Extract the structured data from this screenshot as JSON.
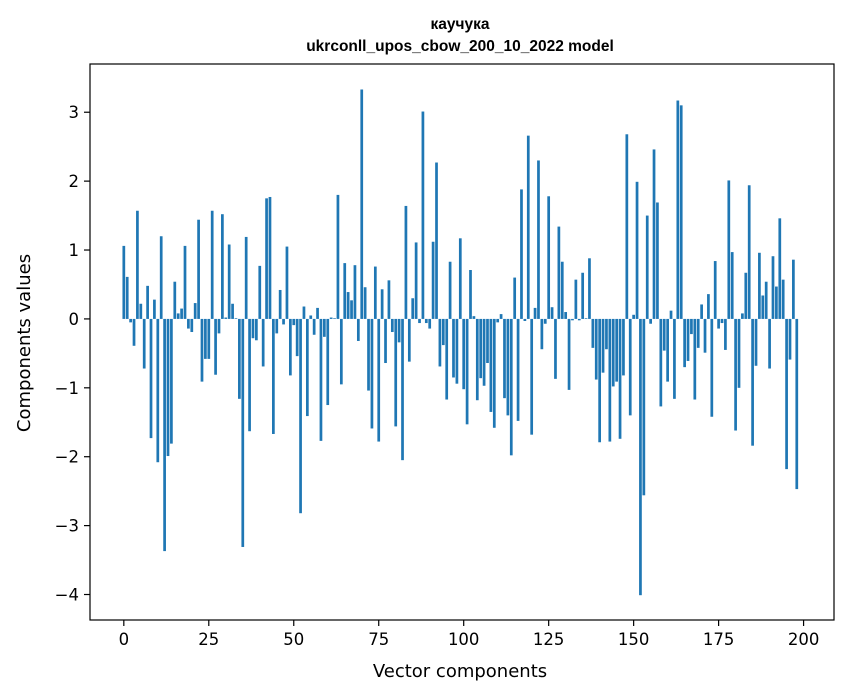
{
  "chart_data": {
    "type": "bar",
    "title_line1": "каучука",
    "title_line2": "ukrconll_upos_cbow_200_10_2022 model",
    "xlabel": "Vector components",
    "ylabel": "Components values",
    "xlim": [
      -9.95,
      208.95
    ],
    "ylim": [
      -4.37,
      3.7
    ],
    "xticks": [
      0,
      25,
      50,
      75,
      100,
      125,
      150,
      175,
      200
    ],
    "yticks": [
      -4,
      -3,
      -2,
      -1,
      0,
      1,
      2,
      3
    ],
    "bar_color": "#1f77b4",
    "grid": false,
    "values": [
      1.06,
      0.61,
      -0.05,
      -0.39,
      1.57,
      0.22,
      -0.72,
      0.48,
      -1.73,
      0.28,
      -2.08,
      1.2,
      -3.37,
      -1.99,
      -1.81,
      0.54,
      0.08,
      0.15,
      1.06,
      -0.14,
      -0.19,
      0.23,
      1.44,
      -0.91,
      -0.58,
      -0.58,
      1.57,
      -0.81,
      -0.21,
      1.52,
      0.02,
      1.08,
      0.22,
      0.01,
      -1.16,
      -3.31,
      1.19,
      -1.63,
      -0.28,
      -0.31,
      0.77,
      -0.69,
      1.75,
      1.77,
      -1.67,
      -0.21,
      0.42,
      -0.08,
      1.05,
      -0.82,
      -0.09,
      -0.54,
      -2.82,
      0.18,
      -1.41,
      0.05,
      -0.23,
      0.16,
      -1.77,
      -0.26,
      -1.25,
      0.02,
      0.01,
      1.8,
      -0.95,
      0.81,
      0.39,
      0.27,
      0.78,
      -0.32,
      3.33,
      0.46,
      -1.04,
      -1.59,
      0.76,
      -1.78,
      0.43,
      -0.64,
      0.56,
      -0.19,
      -1.56,
      -0.34,
      -2.05,
      1.64,
      -0.62,
      0.3,
      1.11,
      -0.06,
      3.01,
      -0.06,
      -0.14,
      1.12,
      2.27,
      -0.69,
      -0.38,
      -1.17,
      0.83,
      -0.85,
      -0.94,
      1.17,
      -1.02,
      -1.53,
      0.71,
      0.04,
      -1.18,
      -0.86,
      -0.97,
      -0.64,
      -1.35,
      -1.58,
      -0.05,
      0.07,
      -1.15,
      -1.4,
      -1.98,
      0.6,
      -1.48,
      1.88,
      -0.03,
      2.66,
      -1.68,
      0.16,
      2.3,
      -0.44,
      -0.07,
      1.78,
      0.17,
      -0.87,
      1.34,
      0.83,
      0.1,
      -1.03,
      -0.02,
      0.57,
      -0.02,
      0.67,
      0.01,
      0.88,
      -0.42,
      -0.88,
      -1.79,
      -0.78,
      -0.44,
      -1.78,
      -0.98,
      -0.91,
      -1.74,
      -0.82,
      2.68,
      -1.4,
      0.06,
      1.99,
      -4.01,
      -2.56,
      1.5,
      -0.07,
      2.46,
      1.69,
      -1.27,
      -0.46,
      -0.91,
      0.12,
      -1.16,
      3.17,
      3.1,
      -0.7,
      -0.61,
      -0.22,
      -1.17,
      -0.42,
      0.21,
      -0.49,
      0.36,
      -1.42,
      0.84,
      -0.14,
      -0.06,
      -0.45,
      2.01,
      0.97,
      -1.62,
      -1.0,
      0.08,
      0.67,
      1.94,
      -1.84,
      -0.68,
      0.96,
      0.34,
      0.54,
      -0.72,
      0.91,
      0.47,
      1.46,
      0.57,
      -2.18,
      -0.59,
      0.86,
      -2.47
    ]
  }
}
